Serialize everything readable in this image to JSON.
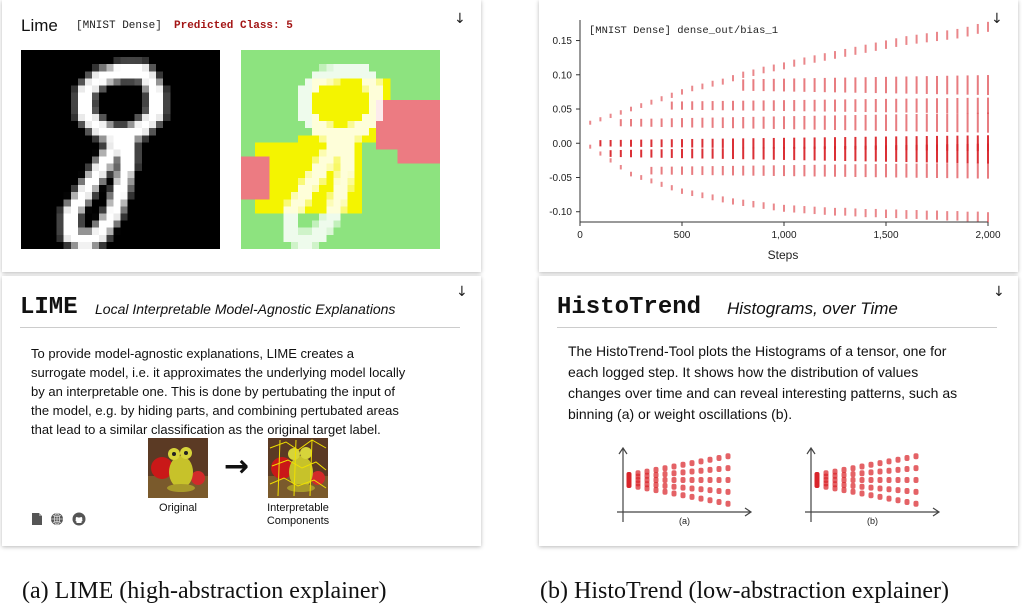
{
  "lime_card": {
    "title": "Lime",
    "model": "[MNIST Dense]",
    "prediction": "Predicted Class: 5"
  },
  "lime_info": {
    "title": "LIME",
    "subtitle": "Local Interpretable Model-Agnostic Explanations",
    "description": "To provide model-agnostic explanations, LIME creates a surrogate model, i.e. it approximates the underlying model locally by an interpretable one. This is done by pertubating the input of the model, e.g. by hiding parts, and combining pertubated areas that lead to a similar classification as the original target label.",
    "original_label": "Original",
    "components_label": "Interpretable Components",
    "footer_icons": [
      "document-icon",
      "globe-icon",
      "github-icon"
    ]
  },
  "histo_card": {
    "title": "[MNIST Dense] dense_out/bias_1",
    "xlabel": "Steps",
    "series_color": "#d9252b"
  },
  "histo_info": {
    "title": "HistoTrend",
    "subtitle": "Histograms, over Time",
    "description": "The HistoTrend-Tool plots the Histograms of a tensor, one for each logged step. It shows how the distribution of values changes over time and can reveal interesting patterns, such as binning (a) or weight oscillations (b).",
    "diagram_a_label": "(a)",
    "diagram_b_label": "(b)"
  },
  "chart_data": {
    "type": "scatter",
    "title": "[MNIST Dense] dense_out/bias_1",
    "xlabel": "Steps",
    "ylabel": "",
    "xlim": [
      0,
      2000
    ],
    "ylim": [
      -0.115,
      0.18
    ],
    "x_ticks": [
      "0",
      "500",
      "1,000",
      "1,500",
      "2,000"
    ],
    "y_ticks": [
      "0.15",
      "0.10",
      "0.05",
      "0.00",
      "-0.05",
      "-0.10"
    ],
    "steps": [
      50,
      100,
      150,
      200,
      250,
      300,
      350,
      400,
      450,
      500,
      550,
      600,
      650,
      700,
      750,
      800,
      850,
      900,
      950,
      1000,
      1050,
      1100,
      1150,
      1200,
      1250,
      1300,
      1350,
      1400,
      1450,
      1500,
      1550,
      1600,
      1650,
      1700,
      1750,
      1800,
      1850,
      1900,
      1950,
      2000
    ],
    "upper_envelope": [
      0.03,
      0.035,
      0.04,
      0.045,
      0.05,
      0.055,
      0.06,
      0.065,
      0.07,
      0.075,
      0.08,
      0.083,
      0.087,
      0.09,
      0.095,
      0.1,
      0.103,
      0.107,
      0.11,
      0.113,
      0.117,
      0.12,
      0.123,
      0.126,
      0.129,
      0.132,
      0.135,
      0.138,
      0.141,
      0.144,
      0.147,
      0.15,
      0.152,
      0.154,
      0.156,
      0.158,
      0.16,
      0.163,
      0.167,
      0.17
    ],
    "lower_envelope": [
      -0.005,
      -0.015,
      -0.025,
      -0.035,
      -0.045,
      -0.05,
      -0.055,
      -0.06,
      -0.065,
      -0.07,
      -0.073,
      -0.076,
      -0.079,
      -0.082,
      -0.085,
      -0.087,
      -0.089,
      -0.091,
      -0.093,
      -0.095,
      -0.096,
      -0.097,
      -0.098,
      -0.099,
      -0.1,
      -0.1,
      -0.101,
      -0.102,
      -0.102,
      -0.103,
      -0.103,
      -0.104,
      -0.104,
      -0.105,
      -0.105,
      -0.106,
      -0.106,
      -0.107,
      -0.107,
      -0.108
    ],
    "core_range": [
      -0.02,
      0.02
    ],
    "grid": false,
    "legend": "none"
  }
}
